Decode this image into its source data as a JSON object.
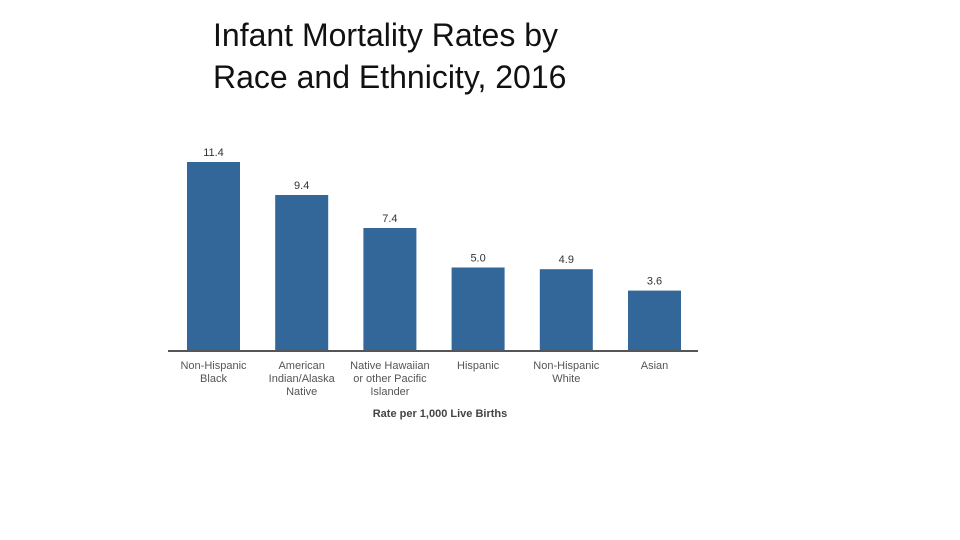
{
  "slide": {
    "title_line1": "Infant Mortality Rates by",
    "title_line2": "Race and Ethnicity, 2016"
  },
  "chart_data": {
    "type": "bar",
    "title": "Infant Mortality Rates by Race and Ethnicity, 2016",
    "categories": [
      [
        "Non-Hispanic",
        "Black"
      ],
      [
        "American",
        "Indian/Alaska",
        "Native"
      ],
      [
        "Native Hawaiian",
        "or other Pacific",
        "Islander"
      ],
      [
        "Hispanic"
      ],
      [
        "Non-Hispanic",
        "White"
      ],
      [
        "Asian"
      ]
    ],
    "values": [
      11.4,
      9.4,
      7.4,
      5.0,
      4.9,
      3.6
    ],
    "value_labels": [
      "11.4",
      "9.4",
      "7.4",
      "5.0",
      "4.9",
      "3.6"
    ],
    "xlabel": "Rate per 1,000 Live Births",
    "ylabel": "",
    "ylim": [
      0,
      11.4
    ],
    "grid": false,
    "legend": "none",
    "bar_color": "#336699",
    "axis_color": "#555555"
  }
}
